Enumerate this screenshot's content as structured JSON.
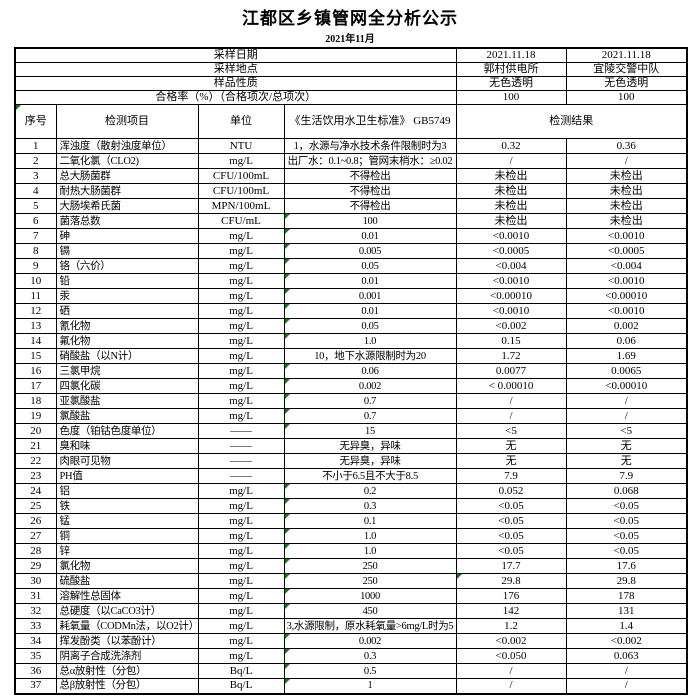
{
  "title": "江都区乡镇管网全分析公示",
  "subtitle": "2021年11月",
  "flag_color": "#157a15",
  "info_rows": [
    {
      "label": "采样日期",
      "v1": "2021.11.18",
      "v2": "2021.11.18"
    },
    {
      "label": "采样地点",
      "v1": "郭村供电所",
      "v2": "宜陵交警中队"
    },
    {
      "label": "样品性质",
      "v1": "无色透明",
      "v2": "无色透明"
    },
    {
      "label": "合格率（%）（合格项次/总项次）",
      "v1": "100",
      "v2": "100"
    }
  ],
  "columns": {
    "no": "序号",
    "item": "检测项目",
    "unit": "单位",
    "standard": "《生活饮用水卫生标准》 GB5749",
    "result": "检测结果"
  },
  "rows": [
    {
      "no": "1",
      "item": "浑浊度（散射浊度单位）",
      "unit": "NTU",
      "std": "1，水源与净水技术条件限制时为3",
      "r1": "0.32",
      "r2": "0.36",
      "sflag": false,
      "r1flag": false
    },
    {
      "no": "2",
      "item": "二氧化氯（CLO2)",
      "unit": "mg/L",
      "std": "出厂水：0.1~0.8；管网末梢水：≥0.02",
      "r1": "/",
      "r2": "/",
      "sflag": false,
      "r1flag": false
    },
    {
      "no": "3",
      "item": "总大肠菌群",
      "unit": "CFU/100mL",
      "std": "不得检出",
      "r1": "未检出",
      "r2": "未检出",
      "sflag": false,
      "r1flag": false
    },
    {
      "no": "4",
      "item": "耐热大肠菌群",
      "unit": "CFU/100mL",
      "std": "不得检出",
      "r1": "未检出",
      "r2": "未检出",
      "sflag": false,
      "r1flag": false
    },
    {
      "no": "5",
      "item": "大肠埃希氏菌",
      "unit": "MPN/100mL",
      "std": "不得检出",
      "r1": "未检出",
      "r2": "未检出",
      "sflag": false,
      "r1flag": false
    },
    {
      "no": "6",
      "item": "菌落总数",
      "unit": "CFU/mL",
      "std": "100",
      "r1": "未检出",
      "r2": "未检出",
      "sflag": true,
      "r1flag": false
    },
    {
      "no": "7",
      "item": "砷",
      "unit": "mg/L",
      "std": "0.01",
      "r1": "<0.0010",
      "r2": "<0.0010",
      "sflag": true,
      "r1flag": false
    },
    {
      "no": "8",
      "item": "镉",
      "unit": "mg/L",
      "std": "0.005",
      "r1": "<0.0005",
      "r2": "<0.0005",
      "sflag": true,
      "r1flag": false
    },
    {
      "no": "9",
      "item": "铬（六价）",
      "unit": "mg/L",
      "std": "0.05",
      "r1": "<0.004",
      "r2": "<0.004",
      "sflag": true,
      "r1flag": false
    },
    {
      "no": "10",
      "item": "铅",
      "unit": "mg/L",
      "std": "0.01",
      "r1": "<0.0010",
      "r2": "<0.0010",
      "sflag": true,
      "r1flag": false
    },
    {
      "no": "11",
      "item": "汞",
      "unit": "mg/L",
      "std": "0.001",
      "r1": "<0.00010",
      "r2": "<0.00010",
      "sflag": true,
      "r1flag": false
    },
    {
      "no": "12",
      "item": "硒",
      "unit": "mg/L",
      "std": "0.01",
      "r1": "<0.0010",
      "r2": "<0.0010",
      "sflag": true,
      "r1flag": false
    },
    {
      "no": "13",
      "item": "氰化物",
      "unit": "mg/L",
      "std": "0.05",
      "r1": "<0.002",
      "r2": "0.002",
      "sflag": true,
      "r1flag": false
    },
    {
      "no": "14",
      "item": "氟化物",
      "unit": "mg/L",
      "std": "1.0",
      "r1": "0.15",
      "r2": "0.06",
      "sflag": true,
      "r1flag": false
    },
    {
      "no": "15",
      "item": "硝酸盐（以N计）",
      "unit": "mg/L",
      "std": "10，地下水源限制时为20",
      "r1": "1.72",
      "r2": "1.69",
      "sflag": false,
      "r1flag": false
    },
    {
      "no": "16",
      "item": "三氯甲烷",
      "unit": "mg/L",
      "std": "0.06",
      "r1": "0.0077",
      "r2": "0.0065",
      "sflag": true,
      "r1flag": false
    },
    {
      "no": "17",
      "item": "四氯化碳",
      "unit": "mg/L",
      "std": "0.002",
      "r1": "< 0.00010",
      "r2": "<0.00010",
      "sflag": true,
      "r1flag": false
    },
    {
      "no": "18",
      "item": "亚氯酸盐",
      "unit": "mg/L",
      "std": "0.7",
      "r1": "/",
      "r2": "/",
      "sflag": true,
      "r1flag": false
    },
    {
      "no": "19",
      "item": "氯酸盐",
      "unit": "mg/L",
      "std": "0.7",
      "r1": "/",
      "r2": "/",
      "sflag": true,
      "r1flag": false
    },
    {
      "no": "20",
      "item": "色度（铂钴色度单位）",
      "unit": "——",
      "std": "15",
      "r1": "<5",
      "r2": "<5",
      "sflag": true,
      "r1flag": false
    },
    {
      "no": "21",
      "item": "臭和味",
      "unit": "——",
      "std": "无异臭，异味",
      "r1": "无",
      "r2": "无",
      "sflag": false,
      "r1flag": false
    },
    {
      "no": "22",
      "item": "肉眼可见物",
      "unit": "——",
      "std": "无异臭，异味",
      "r1": "无",
      "r2": "无",
      "sflag": false,
      "r1flag": false
    },
    {
      "no": "23",
      "item": "PH值",
      "unit": "——",
      "std": "不小于6.5且不大于8.5",
      "r1": "7.9",
      "r2": "7.9",
      "sflag": false,
      "r1flag": false
    },
    {
      "no": "24",
      "item": "铝",
      "unit": "mg/L",
      "std": "0.2",
      "r1": "0.052",
      "r2": "0.068",
      "sflag": true,
      "r1flag": false
    },
    {
      "no": "25",
      "item": "铁",
      "unit": "mg/L",
      "std": "0.3",
      "r1": "<0.05",
      "r2": "<0.05",
      "sflag": true,
      "r1flag": false
    },
    {
      "no": "26",
      "item": "锰",
      "unit": "mg/L",
      "std": "0.1",
      "r1": "<0.05",
      "r2": "<0.05",
      "sflag": true,
      "r1flag": false
    },
    {
      "no": "27",
      "item": "铜",
      "unit": "mg/L",
      "std": "1.0",
      "r1": "<0.05",
      "r2": "<0.05",
      "sflag": true,
      "r1flag": false
    },
    {
      "no": "28",
      "item": "锌",
      "unit": "mg/L",
      "std": "1.0",
      "r1": "<0.05",
      "r2": "<0.05",
      "sflag": true,
      "r1flag": false
    },
    {
      "no": "29",
      "item": "氯化物",
      "unit": "mg/L",
      "std": "250",
      "r1": "17.7",
      "r2": "17.6",
      "sflag": true,
      "r1flag": false
    },
    {
      "no": "30",
      "item": "硫酸盐",
      "unit": "mg/L",
      "std": "250",
      "r1": "29.8",
      "r2": "29.8",
      "sflag": true,
      "r1flag": true
    },
    {
      "no": "31",
      "item": "溶解性总固体",
      "unit": "mg/L",
      "std": "1000",
      "r1": "176",
      "r2": "178",
      "sflag": true,
      "r1flag": false
    },
    {
      "no": "32",
      "item": "总硬度（以CaCO3计）",
      "unit": "mg/L",
      "std": "450",
      "r1": "142",
      "r2": "131",
      "sflag": true,
      "r1flag": false
    },
    {
      "no": "33",
      "item": "耗氧量（CODMn法，以O2计）",
      "unit": "mg/L",
      "std": "3,水源限制，原水耗氧量>6mg/L时为5",
      "r1": "1.2",
      "r2": "1.4",
      "sflag": false,
      "r1flag": false
    },
    {
      "no": "34",
      "item": "挥发酚类（以苯酚计）",
      "unit": "mg/L",
      "std": "0.002",
      "r1": "<0.002",
      "r2": "<0.002",
      "sflag": true,
      "r1flag": false
    },
    {
      "no": "35",
      "item": "阴离子合成洗涤剂",
      "unit": "mg/L",
      "std": "0.3",
      "r1": "<0.050",
      "r2": "0.063",
      "sflag": true,
      "r1flag": false
    },
    {
      "no": "36",
      "item": "总α放射性（分包）",
      "unit": "Bq/L",
      "std": "0.5",
      "r1": "/",
      "r2": "/",
      "sflag": true,
      "r1flag": false
    },
    {
      "no": "37",
      "item": "总β放射性（分包）",
      "unit": "Bq/L",
      "std": "1",
      "r1": "/",
      "r2": "/",
      "sflag": true,
      "r1flag": false
    }
  ]
}
